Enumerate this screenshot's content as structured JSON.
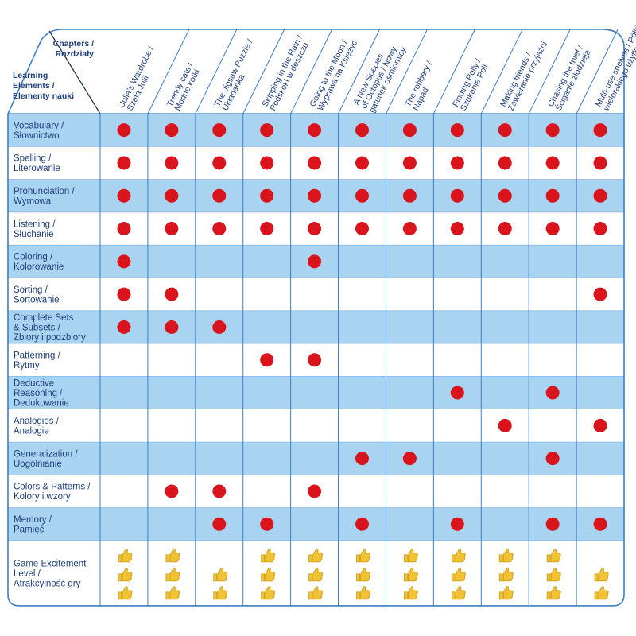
{
  "chart_data": {
    "type": "table",
    "corner": {
      "columns_header": [
        "Chapters /",
        "Rozdziały"
      ],
      "rows_header": [
        "Learning",
        "Elements /",
        "Elementy nauki"
      ]
    },
    "columns": [
      [
        "Julia's Wardrobe /",
        "Szafa Julii"
      ],
      [
        "Trendy cats /",
        "Modne kotki"
      ],
      [
        "The Jigsaw Puzzle /",
        "Układanka"
      ],
      [
        "Skipping in the Rain /",
        "Podskoki w deszczu"
      ],
      [
        "Going to the Moon /",
        "Wyprawa na Księżyc"
      ],
      [
        "A New Species",
        "of Octopus / Nowy",
        "gatunek ośmiornicy"
      ],
      [
        "The robbery /",
        "Napad"
      ],
      [
        "Finding Polly /",
        "Szukanie Poli"
      ],
      [
        "Making friends /",
        "Zawieranie przyjaźni"
      ],
      [
        "Chasing the thief /",
        "Ściganie złodzieja"
      ],
      [
        "Multi-use shelves / Półki",
        "wielorakiego użytku"
      ]
    ],
    "rows": [
      {
        "label": [
          "Vocabulary /",
          "Słownictwo"
        ],
        "marks": [
          1,
          1,
          1,
          1,
          1,
          1,
          1,
          1,
          1,
          1,
          1
        ]
      },
      {
        "label": [
          "Spelling /",
          "Literowanie"
        ],
        "marks": [
          1,
          1,
          1,
          1,
          1,
          1,
          1,
          1,
          1,
          1,
          1
        ]
      },
      {
        "label": [
          "Pronunciation /",
          "Wymowa"
        ],
        "marks": [
          1,
          1,
          1,
          1,
          1,
          1,
          1,
          1,
          1,
          1,
          1
        ]
      },
      {
        "label": [
          "Listening /",
          "Słuchanie"
        ],
        "marks": [
          1,
          1,
          1,
          1,
          1,
          1,
          1,
          1,
          1,
          1,
          1
        ]
      },
      {
        "label": [
          "Coloring /",
          "Kolorowanie"
        ],
        "marks": [
          1,
          0,
          0,
          0,
          1,
          0,
          0,
          0,
          0,
          0,
          0
        ]
      },
      {
        "label": [
          "Sorting /",
          "Sortowanie"
        ],
        "marks": [
          1,
          1,
          0,
          0,
          0,
          0,
          0,
          0,
          0,
          0,
          1
        ]
      },
      {
        "label": [
          "Complete Sets",
          "& Subsets /",
          "Zbiory i podzbiory"
        ],
        "marks": [
          1,
          1,
          1,
          0,
          0,
          0,
          0,
          0,
          0,
          0,
          0
        ]
      },
      {
        "label": [
          "Patterning /",
          "Rytmy"
        ],
        "marks": [
          0,
          0,
          0,
          1,
          1,
          0,
          0,
          0,
          0,
          0,
          0
        ]
      },
      {
        "label": [
          "Deductive",
          "Reasoning /",
          "Dedukowanie"
        ],
        "marks": [
          0,
          0,
          0,
          0,
          0,
          0,
          0,
          1,
          0,
          1,
          0
        ]
      },
      {
        "label": [
          "Analogies /",
          "Analogie"
        ],
        "marks": [
          0,
          0,
          0,
          0,
          0,
          0,
          0,
          0,
          1,
          0,
          1
        ]
      },
      {
        "label": [
          "Generalization /",
          "Uogólnianie"
        ],
        "marks": [
          0,
          0,
          0,
          0,
          0,
          1,
          1,
          0,
          0,
          1,
          0
        ]
      },
      {
        "label": [
          "Colors & Patterns /",
          "Kolory i wzory"
        ],
        "marks": [
          0,
          1,
          1,
          0,
          1,
          0,
          0,
          0,
          0,
          0,
          0
        ]
      },
      {
        "label": [
          "Memory /",
          "Pamięć"
        ],
        "marks": [
          0,
          0,
          1,
          1,
          0,
          1,
          0,
          1,
          0,
          1,
          1
        ]
      }
    ],
    "rating_row": {
      "label": [
        "Game Excitement",
        "Level /",
        "Atrakcyjność gry"
      ],
      "values": [
        3,
        3,
        2,
        3,
        3,
        3,
        3,
        3,
        3,
        3,
        2
      ],
      "max": 3,
      "icon": "thumbs-up-icon"
    },
    "colors": {
      "band": "#a9d4f1",
      "grid": "#3c7ec2",
      "dot": "#d9141c",
      "thumb": "#f1c233",
      "text": "#1f3f7a"
    }
  }
}
